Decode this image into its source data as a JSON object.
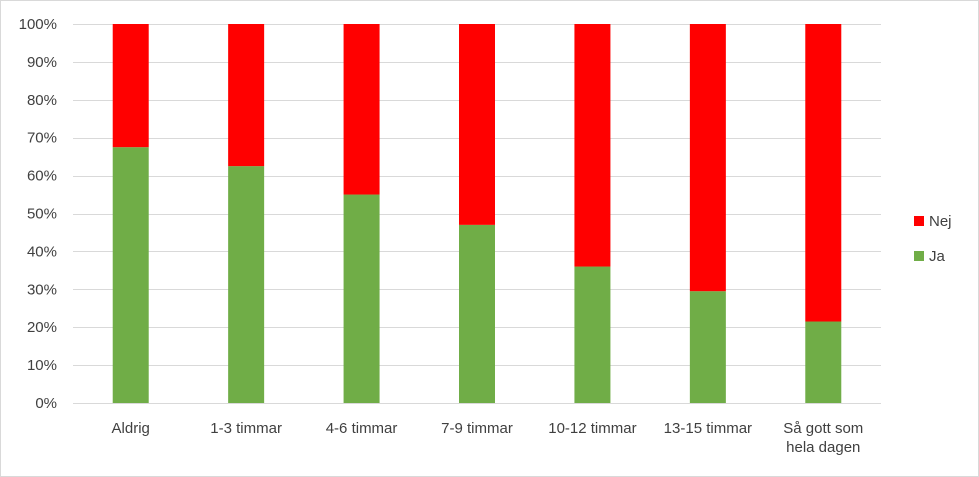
{
  "chart_data": {
    "type": "bar",
    "stacked": true,
    "percent_stacked": true,
    "categories": [
      "Aldrig",
      "1-3 timmar",
      "4-6 timmar",
      "7-9 timmar",
      "10-12 timmar",
      "13-15 timmar",
      "Så gott som hela dagen"
    ],
    "category_label_lines": [
      [
        "Aldrig"
      ],
      [
        "1-3 timmar"
      ],
      [
        "4-6 timmar"
      ],
      [
        "7-9 timmar"
      ],
      [
        "10-12 timmar"
      ],
      [
        "13-15 timmar"
      ],
      [
        "Så gott som",
        "hela dagen"
      ]
    ],
    "series": [
      {
        "name": "Ja",
        "color": "#70ad47",
        "values": [
          67.5,
          62.5,
          55,
          47,
          36,
          29.5,
          21.5
        ]
      },
      {
        "name": "Nej",
        "color": "#ff0000",
        "values": [
          32.5,
          37.5,
          45,
          53,
          64,
          70.5,
          78.5
        ]
      }
    ],
    "ylim": [
      0,
      100
    ],
    "yticks": [
      "0%",
      "10%",
      "20%",
      "30%",
      "40%",
      "50%",
      "60%",
      "70%",
      "80%",
      "90%",
      "100%"
    ],
    "grid": true,
    "legend_position": "right",
    "legend_order": [
      "Nej",
      "Ja"
    ],
    "title": "",
    "xlabel": "",
    "ylabel": ""
  }
}
